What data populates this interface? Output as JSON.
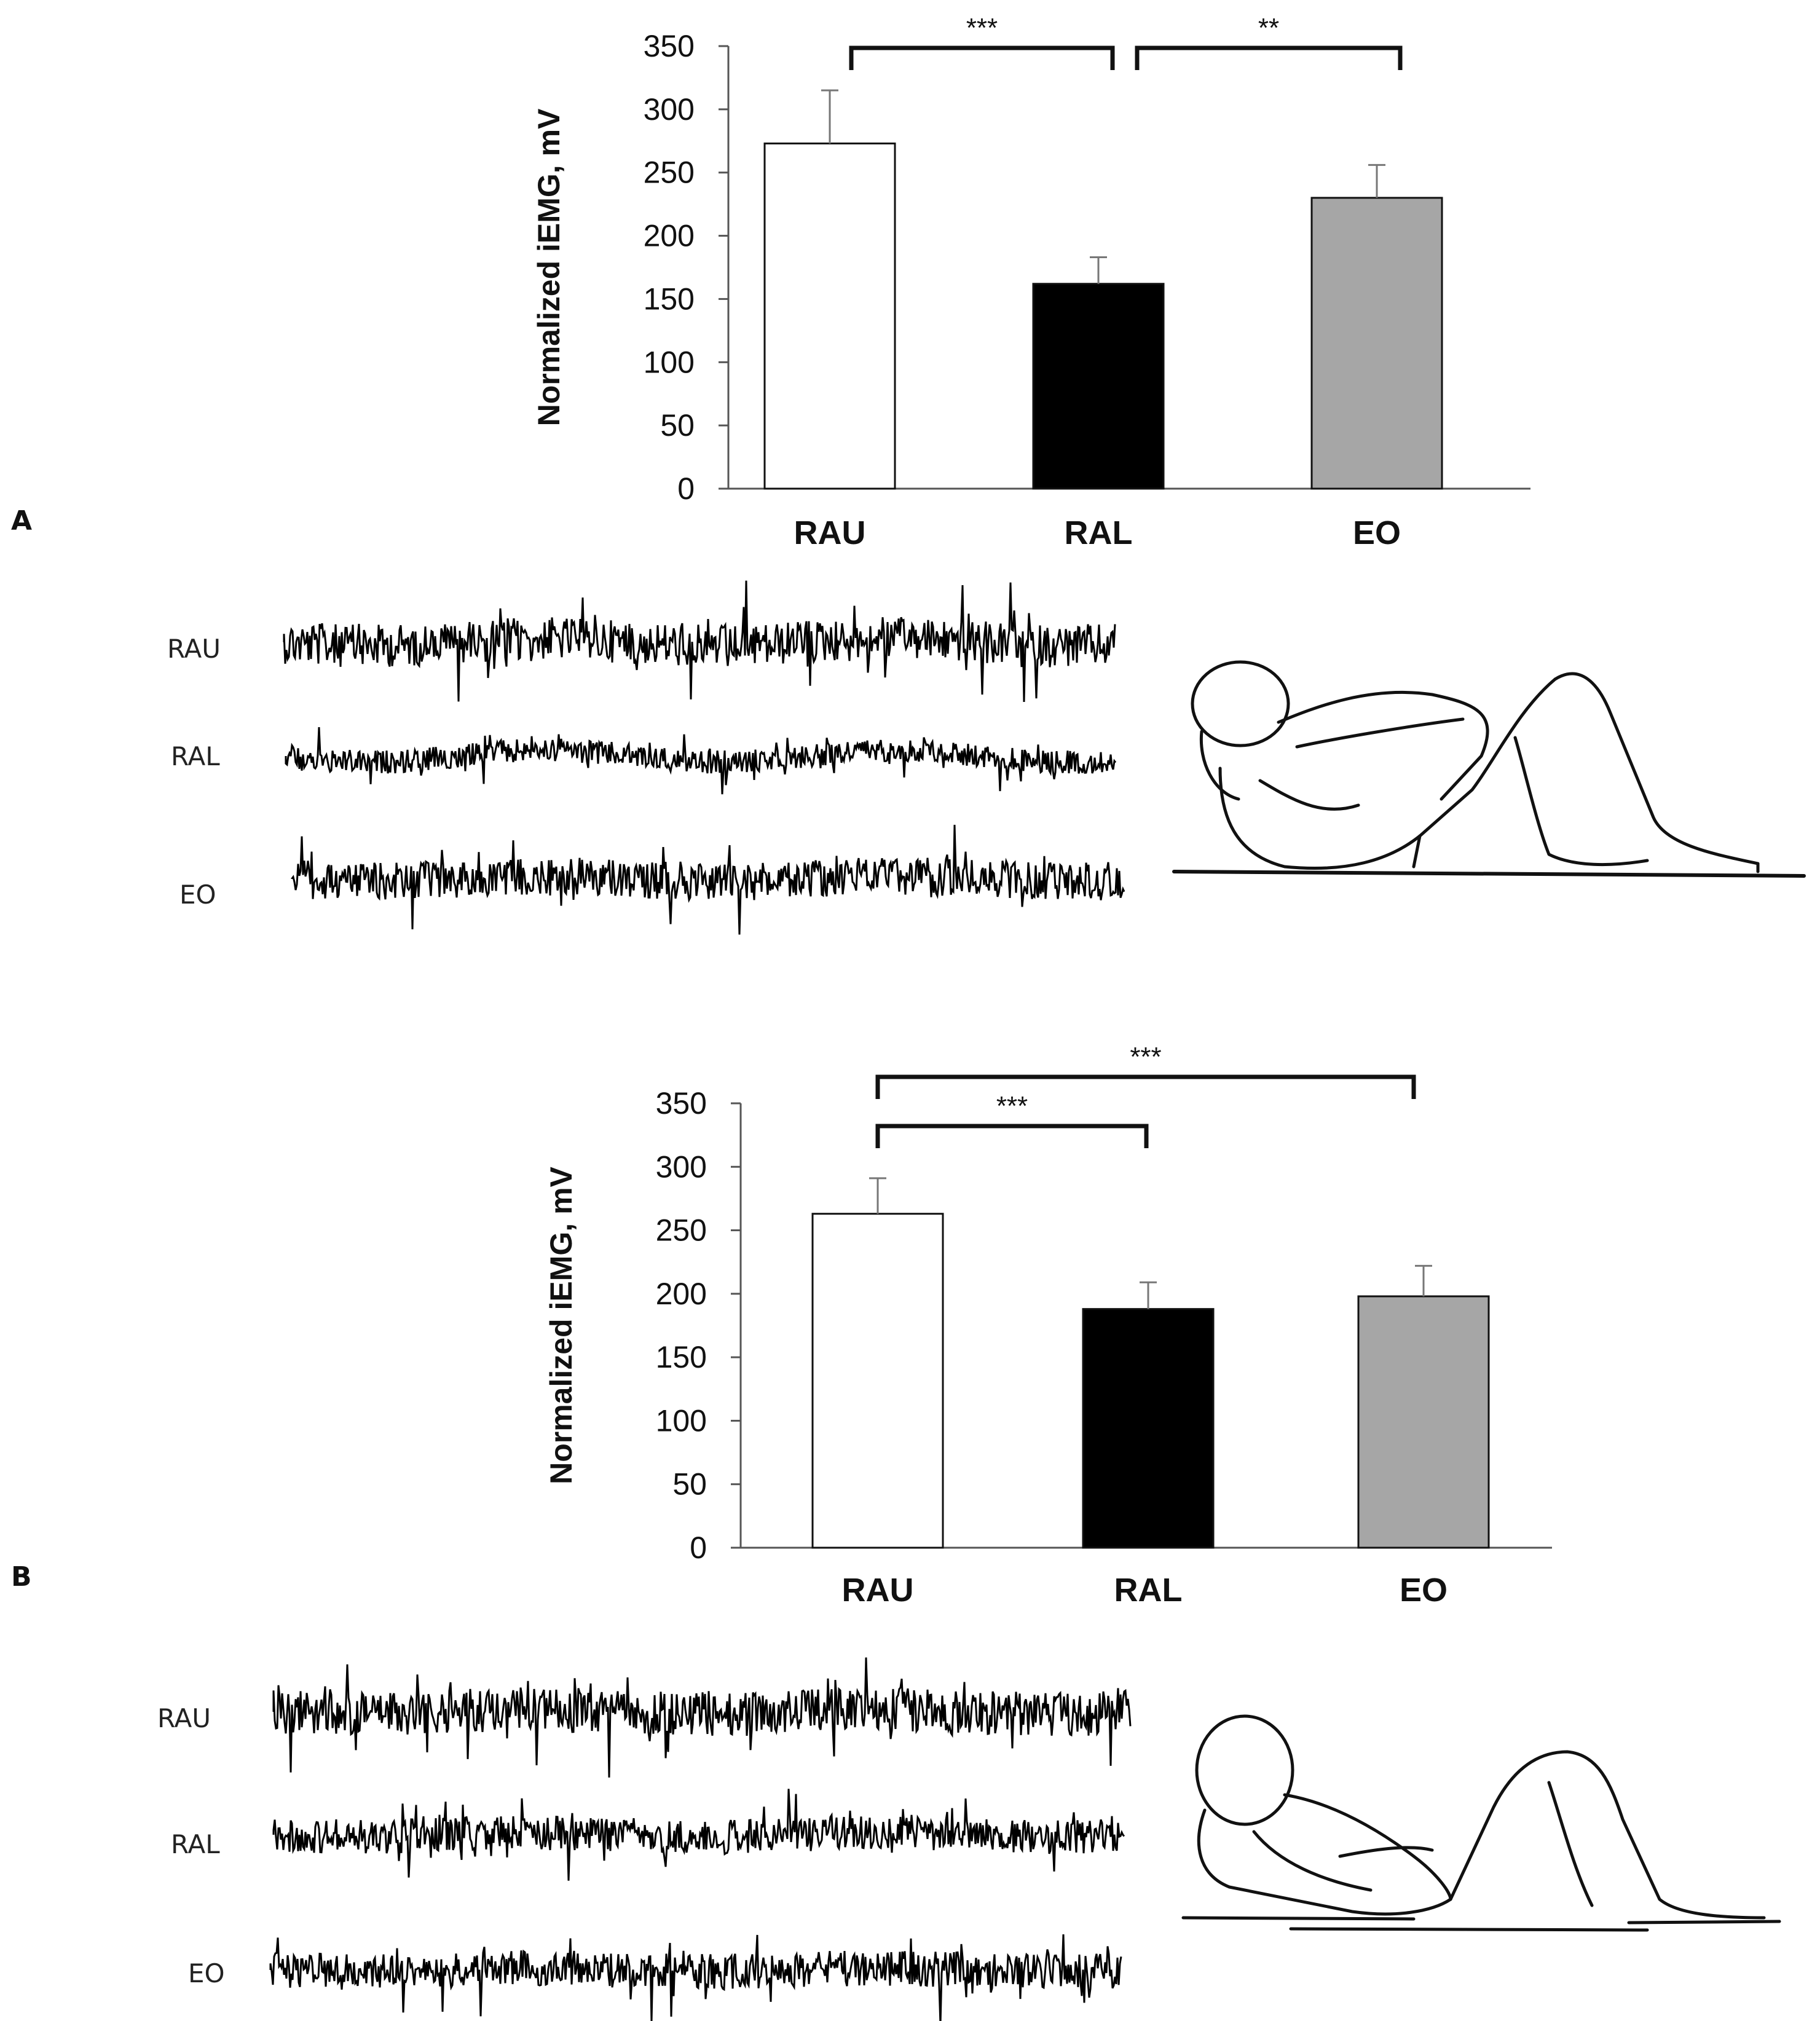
{
  "panels": [
    {
      "letter": "A",
      "trace_labels": [
        "RAU",
        "RAL",
        "EO"
      ],
      "illustration": "crunch-exercise-figure"
    },
    {
      "letter": "B",
      "trace_labels": [
        "RAU",
        "RAL",
        "EO"
      ],
      "illustration": "reclined-exercise-figure"
    }
  ],
  "chart_data": [
    {
      "type": "bar",
      "title": "",
      "xlabel": "",
      "ylabel": "Normalized iEMG, mV",
      "ylim": [
        0,
        350
      ],
      "yticks": [
        0,
        50,
        100,
        150,
        200,
        250,
        300,
        350
      ],
      "categories": [
        "RAU",
        "RAL",
        "EO"
      ],
      "values": [
        273,
        162,
        230
      ],
      "errors": [
        42,
        21,
        26
      ],
      "bar_colors": [
        "#ffffff",
        "#000000",
        "#a6a6a6"
      ],
      "grid": false,
      "significance": [
        {
          "from": 0,
          "to": 1,
          "label": "***"
        },
        {
          "from": 1,
          "to": 2,
          "label": "**"
        }
      ]
    },
    {
      "type": "bar",
      "title": "",
      "xlabel": "",
      "ylabel": "Normalized iEMG, mV",
      "ylim": [
        0,
        350
      ],
      "yticks": [
        0,
        50,
        100,
        150,
        200,
        250,
        300,
        350
      ],
      "categories": [
        "RAU",
        "RAL",
        "EO"
      ],
      "values": [
        263,
        188,
        198
      ],
      "errors": [
        28,
        21,
        24
      ],
      "bar_colors": [
        "#ffffff",
        "#000000",
        "#a6a6a6"
      ],
      "grid": false,
      "significance": [
        {
          "from": 0,
          "to": 1,
          "label": "***"
        },
        {
          "from": 0,
          "to": 2,
          "label": "***"
        }
      ]
    }
  ]
}
